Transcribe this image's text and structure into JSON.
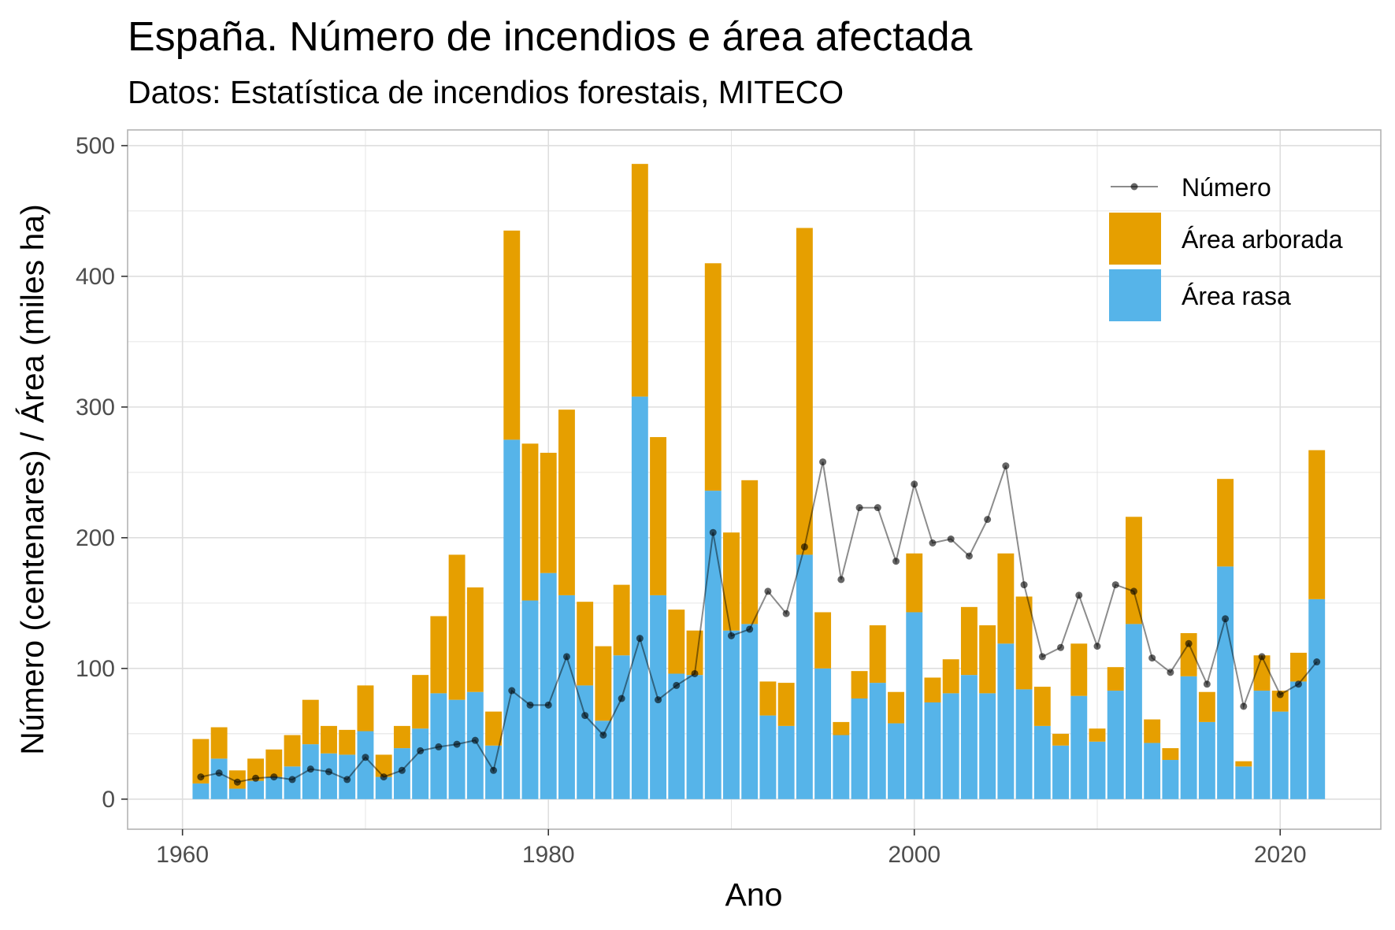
{
  "chart_data": {
    "type": "bar",
    "title": "España. Número de incendios e área afectada",
    "subtitle": "Datos: Estatística de incendios forestais, MITECO",
    "xlabel": "Ano",
    "ylabel": "Número (centenares) / Área (miles ha)",
    "xlim": [
      1957,
      2025.5
    ],
    "ylim": [
      -23,
      512
    ],
    "grid": true,
    "legend_position": "top-right",
    "x_ticks": [
      1960,
      1980,
      2000,
      2020
    ],
    "y_ticks": [
      0,
      100,
      200,
      300,
      400,
      500
    ],
    "x_tick_labels": [
      "1960",
      "1980",
      "2000",
      "2020"
    ],
    "y_tick_labels": [
      "0",
      "100",
      "200",
      "300",
      "400",
      "500"
    ],
    "colors": {
      "area_rasa": "#56b4e9",
      "area_arborada": "#e69f00",
      "numero": "#000000",
      "grid": "#dedede",
      "panel_border": "#b3b3b3"
    },
    "x": [
      1961,
      1962,
      1963,
      1964,
      1965,
      1966,
      1967,
      1968,
      1969,
      1970,
      1971,
      1972,
      1973,
      1974,
      1975,
      1976,
      1977,
      1978,
      1979,
      1980,
      1981,
      1982,
      1983,
      1984,
      1985,
      1986,
      1987,
      1988,
      1989,
      1990,
      1991,
      1992,
      1993,
      1994,
      1995,
      1996,
      1997,
      1998,
      1999,
      2000,
      2001,
      2002,
      2003,
      2004,
      2005,
      2006,
      2007,
      2008,
      2009,
      2010,
      2011,
      2012,
      2013,
      2014,
      2015,
      2016,
      2017,
      2018,
      2019,
      2020,
      2021,
      2022
    ],
    "series": [
      {
        "name": "Área rasa",
        "values": [
          12,
          31,
          8,
          14,
          17,
          25,
          42,
          35,
          34,
          52,
          17,
          39,
          54,
          81,
          76,
          82,
          41,
          275,
          152,
          173,
          156,
          87,
          60,
          110,
          308,
          156,
          96,
          95,
          236,
          129,
          134,
          64,
          56,
          187,
          100,
          49,
          77,
          89,
          58,
          143,
          74,
          81,
          95,
          81,
          119,
          84,
          56,
          41,
          79,
          44,
          83,
          134,
          43,
          30,
          94,
          59,
          178,
          25,
          83,
          67,
          90,
          153
        ]
      },
      {
        "name": "Área arborada",
        "values": [
          34,
          24,
          14,
          17,
          21,
          24,
          34,
          21,
          19,
          35,
          17,
          17,
          41,
          59,
          111,
          80,
          26,
          160,
          120,
          92,
          142,
          64,
          57,
          54,
          178,
          121,
          49,
          34,
          174,
          75,
          110,
          26,
          33,
          250,
          43,
          10,
          21,
          44,
          24,
          45,
          19,
          26,
          52,
          52,
          69,
          71,
          30,
          9,
          40,
          10,
          18,
          82,
          18,
          9,
          33,
          23,
          67,
          4,
          27,
          16,
          22,
          114
        ]
      },
      {
        "name": "Número",
        "values": [
          17,
          20,
          13,
          16,
          17,
          15,
          23,
          21,
          15,
          32,
          17,
          22,
          37,
          40,
          42,
          45,
          22,
          83,
          72,
          72,
          109,
          64,
          49,
          77,
          123,
          76,
          87,
          96,
          204,
          125,
          130,
          159,
          142,
          193,
          258,
          168,
          223,
          223,
          182,
          241,
          196,
          199,
          186,
          214,
          255,
          164,
          109,
          116,
          156,
          117,
          164,
          159,
          108,
          97,
          119,
          88,
          138,
          71,
          109,
          80,
          88,
          105
        ]
      }
    ]
  }
}
